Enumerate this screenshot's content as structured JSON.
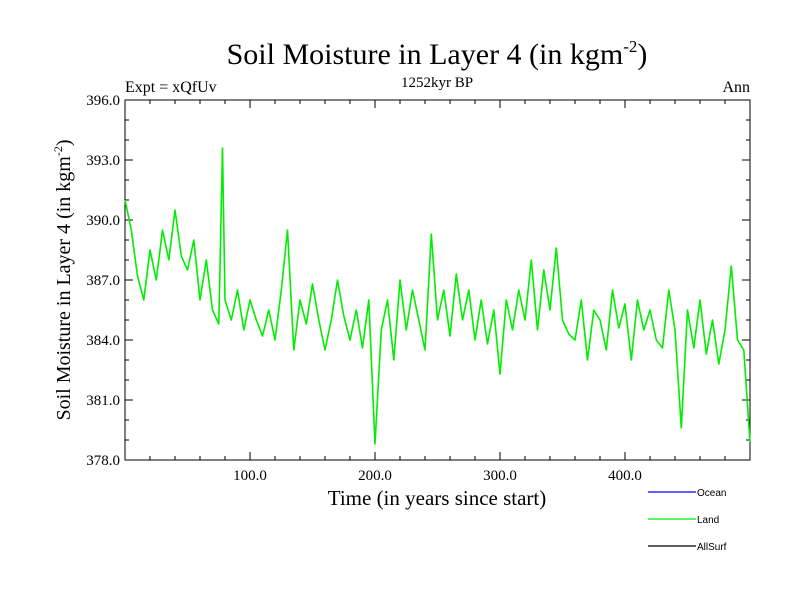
{
  "chart_data": {
    "type": "line",
    "title_main": "Soil Moisture in Layer 4 (in kgm",
    "title_sup": "-2",
    "title_close": ")",
    "subtitle": "1252kyr BP",
    "expt_label": "Expt = xQfUv",
    "season": "Ann",
    "xlabel": "Time (in years since start)",
    "ylabel_main": "Soil Moisture in Layer 4 (in kgm",
    "ylabel_sup": "-2",
    "ylabel_close": ")",
    "xlim": [
      0,
      500
    ],
    "ylim": [
      378.0,
      396.0
    ],
    "xticks": [
      {
        "value": 100,
        "label": "100.0"
      },
      {
        "value": 200,
        "label": "200.0"
      },
      {
        "value": 300,
        "label": "300.0"
      },
      {
        "value": 400,
        "label": "400.0"
      }
    ],
    "yticks": [
      {
        "value": 378,
        "label": "378.0"
      },
      {
        "value": 381,
        "label": "381.0"
      },
      {
        "value": 384,
        "label": "384.0"
      },
      {
        "value": 387,
        "label": "387.0"
      },
      {
        "value": 390,
        "label": "390.0"
      },
      {
        "value": 393,
        "label": "393.0"
      },
      {
        "value": 396,
        "label": "396.0"
      }
    ],
    "legend": [
      {
        "name": "Ocean",
        "color": "#0000ff"
      },
      {
        "name": "Land",
        "color": "#00ee00"
      },
      {
        "name": "AllSurf",
        "color": "#000000"
      }
    ],
    "series": [
      {
        "name": "Land",
        "color": "#00ee00",
        "x": [
          0,
          5,
          10,
          15,
          20,
          25,
          30,
          35,
          40,
          45,
          50,
          55,
          60,
          65,
          70,
          75,
          78,
          80,
          85,
          90,
          95,
          100,
          105,
          110,
          115,
          120,
          125,
          130,
          135,
          140,
          145,
          150,
          155,
          160,
          165,
          170,
          175,
          180,
          185,
          190,
          195,
          200,
          205,
          210,
          215,
          220,
          225,
          230,
          235,
          240,
          245,
          250,
          255,
          260,
          265,
          270,
          275,
          280,
          285,
          290,
          295,
          300,
          305,
          310,
          315,
          320,
          325,
          330,
          335,
          340,
          345,
          350,
          355,
          360,
          365,
          370,
          375,
          380,
          385,
          390,
          395,
          400,
          405,
          410,
          415,
          420,
          425,
          430,
          435,
          440,
          445,
          450,
          455,
          460,
          465,
          470,
          475,
          480,
          485,
          490,
          495,
          500
        ],
        "y": [
          391.0,
          389.5,
          387.2,
          386.0,
          388.5,
          387.0,
          389.5,
          388.0,
          390.5,
          388.2,
          387.5,
          389.0,
          386.0,
          388.0,
          385.5,
          384.8,
          393.6,
          386.0,
          385.0,
          386.5,
          384.5,
          386.0,
          385.0,
          384.2,
          385.5,
          384.0,
          386.5,
          389.5,
          383.5,
          386.0,
          384.8,
          386.8,
          385.0,
          383.5,
          385.0,
          387.0,
          385.2,
          384.0,
          385.5,
          383.6,
          386.0,
          378.8,
          384.5,
          386.0,
          383.0,
          387.0,
          384.5,
          386.5,
          385.0,
          383.5,
          389.3,
          385.0,
          386.5,
          384.2,
          387.3,
          385.0,
          386.5,
          384.0,
          386.0,
          383.8,
          385.5,
          382.3,
          386.0,
          384.5,
          386.5,
          385.0,
          388.0,
          384.5,
          387.5,
          385.5,
          388.6,
          385.0,
          384.3,
          384.0,
          386.0,
          383.0,
          385.5,
          385.0,
          383.5,
          386.5,
          384.6,
          385.8,
          383.0,
          386.0,
          384.5,
          385.5,
          384.0,
          383.6,
          386.5,
          384.5,
          379.6,
          385.5,
          383.6,
          386.0,
          383.3,
          385.0,
          382.8,
          384.5,
          387.7,
          384.0,
          383.5,
          378.9
        ]
      }
    ]
  }
}
